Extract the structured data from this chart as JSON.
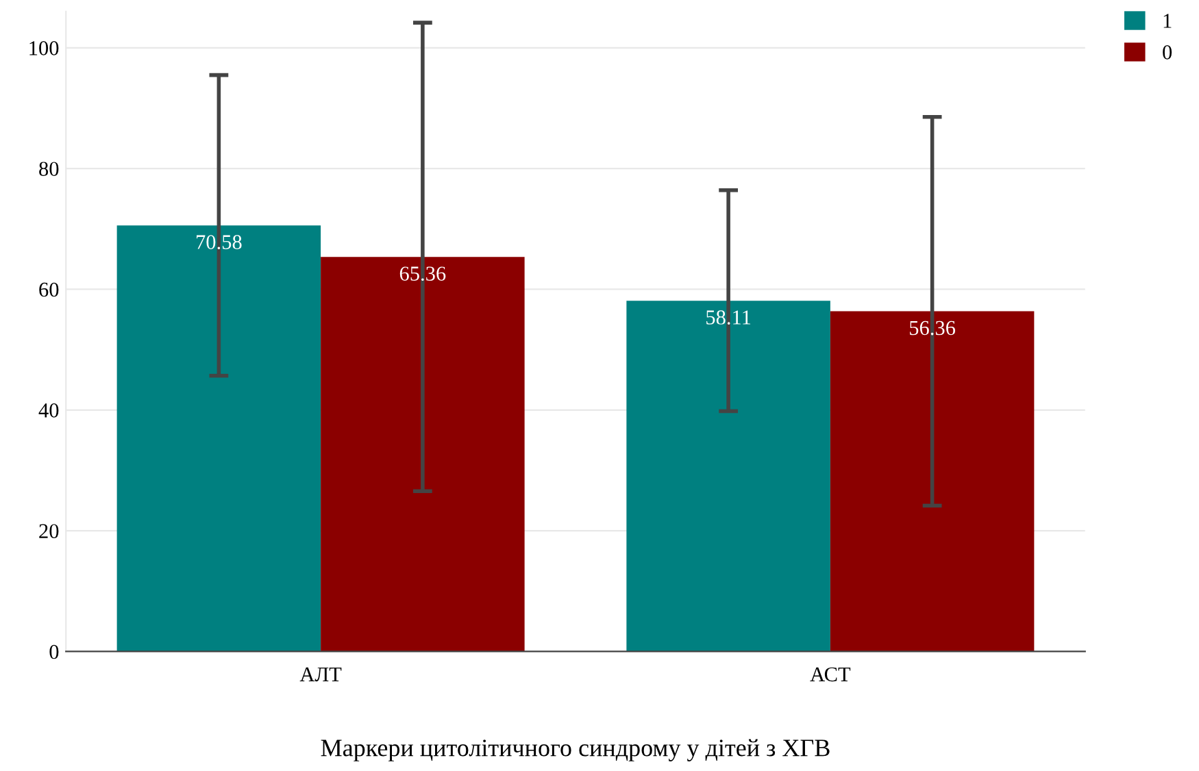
{
  "chart_data": {
    "type": "bar",
    "xlabel": "Маркери цитолітичного синдрому у дітей з ХГВ",
    "categories": [
      "АЛТ",
      "АСТ"
    ],
    "series": [
      {
        "name": "1",
        "color": "#008080",
        "values": [
          70.58,
          58.11
        ],
        "errors": [
          24.9,
          18.3
        ]
      },
      {
        "name": "0",
        "color": "#8b0000",
        "values": [
          65.36,
          56.36
        ],
        "errors": [
          38.8,
          32.2
        ]
      }
    ],
    "ylim": [
      0,
      106
    ],
    "yticks": [
      0,
      20,
      40,
      60,
      80,
      100
    ],
    "grid": "y",
    "legend": "top right",
    "data_labels": true
  }
}
